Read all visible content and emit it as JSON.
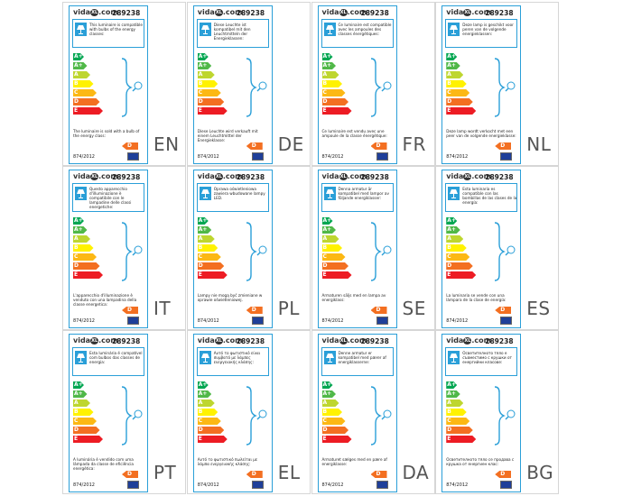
{
  "logo": {
    "prefix": "vida",
    "mark": "XL",
    "suffix": ".com"
  },
  "model": "289238",
  "regulation": "874/2012",
  "classes": [
    "A++",
    "A+",
    "A",
    "B",
    "C",
    "D",
    "E"
  ],
  "rating": "D",
  "labels": [
    {
      "lang": "EN",
      "top_text": "This luminaire is compatible with bulbs of the energy classes:",
      "bottom_text": "The luminaire is sold with a bulb of the energy class:"
    },
    {
      "lang": "DE",
      "top_text": "Diese Leuchte ist kompatibel mit den Leuchtmitteln der Energieklassen:",
      "bottom_text": "Diese Leuchte wird verkauft mit einem Leuchtmittel der Energieklasse:"
    },
    {
      "lang": "FR",
      "top_text": "Ce luminaire est compatible avec les ampoules des classes énergétiques:",
      "bottom_text": "Ce luminaire est vendu avec une ampoule de la classe énergétique:"
    },
    {
      "lang": "NL",
      "top_text": "Deze lamp is geschikt voor peren van de volgende energieklassen:",
      "bottom_text": "Deze lamp wordt verkocht met een peer van de volgende energieklasse:"
    },
    {
      "lang": "IT",
      "top_text": "Questo apparecchio d'illuminazione è compatibile con le lampadine delle classi energetiche:",
      "bottom_text": "L'apparecchio d'illuminazione è venduto con una lampadina della classe energetica:"
    },
    {
      "lang": "PL",
      "top_text": "Oprawa oświetleniowa zawiera wbudowane lampy LED.",
      "bottom_text": "Lampy nie mogą być zmieniane w oprawie oświetleniowej."
    },
    {
      "lang": "SE",
      "top_text": "Denna armatur är kompatibel med lampor av följande energiklasser:",
      "bottom_text": "Armaturen säljs med en lampa av energiklass:"
    },
    {
      "lang": "ES",
      "top_text": "Esta luminaria es compatible con las bombillas de las clases de la energía:",
      "bottom_text": "La luminaria se vende con una lámpara de la clase de energía:"
    },
    {
      "lang": "PT",
      "top_text": "Esta luminária é compatível com bulbos das classes de energia:",
      "bottom_text": "A luminária é vendido com uma lâmpada da classe de eficiência energética:"
    },
    {
      "lang": "EL",
      "top_text": "Αυτό το φωτιστικό είναι συμβατό με λάμπες ενεργειακής κλάσης:",
      "bottom_text": "Αυτό το φωτιστικό πωλείται με λάμπα ενεργειακής κλάσης:"
    },
    {
      "lang": "DA",
      "top_text": "Denne armatur er kompatibel med pærer af energiklasserne:",
      "bottom_text": "Armaturet sælges med en pære af energiklasse:"
    },
    {
      "lang": "BG",
      "top_text": "Осветителното тяло е съвместимо с крушки от енергийни класове:",
      "bottom_text": "Осветителното тяло се продава с крушка от енергиен клас:"
    }
  ]
}
